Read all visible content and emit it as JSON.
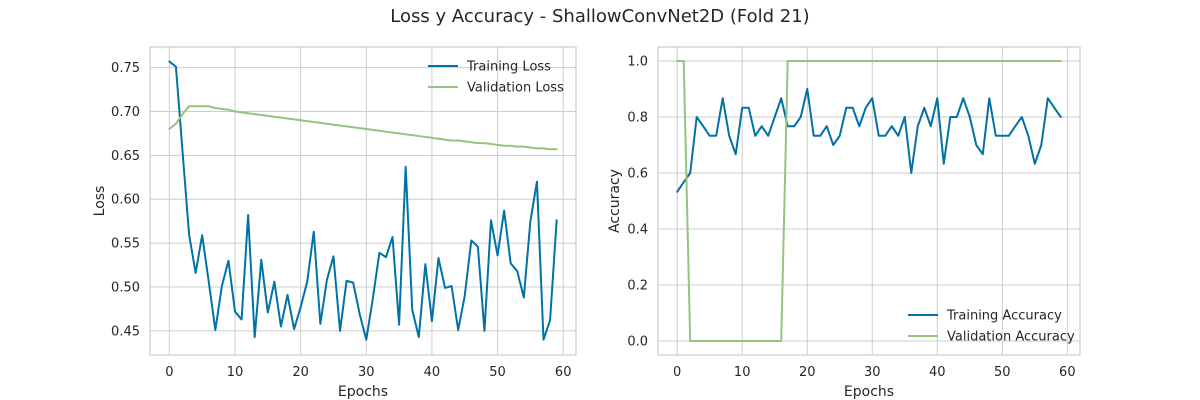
{
  "figure_title": "Loss y Accuracy - ShallowConvNet2D (Fold 21)",
  "colors": {
    "training": "#0072a6",
    "validation": "#96c37d",
    "grid": "#cccccc",
    "frame": "#cccccc"
  },
  "chart_data": [
    {
      "type": "line",
      "xlabel": "Epochs",
      "ylabel": "Loss",
      "xlim": [
        -2.95,
        61.95
      ],
      "ylim": [
        0.4225,
        0.7735
      ],
      "xticks": [
        0,
        10,
        20,
        30,
        40,
        50,
        60
      ],
      "yticks": [
        0.45,
        0.5,
        0.55,
        0.6,
        0.65,
        0.7,
        0.75
      ],
      "ytick_labels": [
        "0.45",
        "0.50",
        "0.55",
        "0.60",
        "0.65",
        "0.70",
        "0.75"
      ],
      "grid": true,
      "legend_position": "top-right",
      "x": [
        0,
        1,
        2,
        3,
        4,
        5,
        6,
        7,
        8,
        9,
        10,
        11,
        12,
        13,
        14,
        15,
        16,
        17,
        18,
        19,
        20,
        21,
        22,
        23,
        24,
        25,
        26,
        27,
        28,
        29,
        30,
        31,
        32,
        33,
        34,
        35,
        36,
        37,
        38,
        39,
        40,
        41,
        42,
        43,
        44,
        45,
        46,
        47,
        48,
        49,
        50,
        51,
        52,
        53,
        54,
        55,
        56,
        57,
        58,
        59
      ],
      "series": [
        {
          "name": "Training Loss",
          "color_key": "training",
          "values": [
            0.757,
            0.751,
            0.655,
            0.56,
            0.516,
            0.559,
            0.506,
            0.451,
            0.501,
            0.53,
            0.472,
            0.463,
            0.582,
            0.443,
            0.531,
            0.471,
            0.506,
            0.455,
            0.491,
            0.452,
            0.477,
            0.506,
            0.563,
            0.458,
            0.508,
            0.535,
            0.45,
            0.507,
            0.505,
            0.469,
            0.44,
            0.487,
            0.539,
            0.534,
            0.557,
            0.457,
            0.637,
            0.474,
            0.443,
            0.526,
            0.461,
            0.533,
            0.499,
            0.501,
            0.451,
            0.49,
            0.553,
            0.546,
            0.45,
            0.576,
            0.536,
            0.587,
            0.527,
            0.518,
            0.488,
            0.575,
            0.62,
            0.44,
            0.462,
            0.576
          ]
        },
        {
          "name": "Validation Loss",
          "color_key": "validation",
          "values": [
            0.68,
            0.686,
            0.697,
            0.706,
            0.706,
            0.706,
            0.706,
            0.704,
            0.703,
            0.702,
            0.7,
            0.699,
            0.698,
            0.697,
            0.696,
            0.695,
            0.694,
            0.693,
            0.692,
            0.691,
            0.69,
            0.689,
            0.688,
            0.687,
            0.686,
            0.685,
            0.684,
            0.683,
            0.682,
            0.681,
            0.68,
            0.679,
            0.678,
            0.677,
            0.676,
            0.675,
            0.674,
            0.673,
            0.672,
            0.671,
            0.67,
            0.669,
            0.668,
            0.667,
            0.667,
            0.666,
            0.665,
            0.664,
            0.664,
            0.663,
            0.662,
            0.661,
            0.661,
            0.66,
            0.66,
            0.659,
            0.658,
            0.658,
            0.657,
            0.657
          ]
        }
      ]
    },
    {
      "type": "line",
      "xlabel": "Epochs",
      "ylabel": "Accuracy",
      "xlim": [
        -2.95,
        61.95
      ],
      "ylim": [
        -0.05,
        1.05
      ],
      "xticks": [
        0,
        10,
        20,
        30,
        40,
        50,
        60
      ],
      "yticks": [
        0.0,
        0.2,
        0.4,
        0.6,
        0.8,
        1.0
      ],
      "ytick_labels": [
        "0.0",
        "0.2",
        "0.4",
        "0.6",
        "0.8",
        "1.0"
      ],
      "grid": true,
      "legend_position": "bottom-right",
      "x": [
        0,
        1,
        2,
        3,
        4,
        5,
        6,
        7,
        8,
        9,
        10,
        11,
        12,
        13,
        14,
        15,
        16,
        17,
        18,
        19,
        20,
        21,
        22,
        23,
        24,
        25,
        26,
        27,
        28,
        29,
        30,
        31,
        32,
        33,
        34,
        35,
        36,
        37,
        38,
        39,
        40,
        41,
        42,
        43,
        44,
        45,
        46,
        47,
        48,
        49,
        50,
        51,
        52,
        53,
        54,
        55,
        56,
        57,
        58,
        59
      ],
      "series": [
        {
          "name": "Training Accuracy",
          "color_key": "training",
          "values": [
            0.533,
            0.567,
            0.6,
            0.8,
            0.767,
            0.733,
            0.733,
            0.867,
            0.733,
            0.667,
            0.833,
            0.833,
            0.733,
            0.767,
            0.733,
            0.8,
            0.867,
            0.767,
            0.767,
            0.8,
            0.9,
            0.733,
            0.733,
            0.767,
            0.7,
            0.733,
            0.833,
            0.833,
            0.767,
            0.833,
            0.867,
            0.733,
            0.733,
            0.767,
            0.733,
            0.8,
            0.6,
            0.767,
            0.833,
            0.767,
            0.867,
            0.633,
            0.8,
            0.8,
            0.867,
            0.8,
            0.7,
            0.667,
            0.867,
            0.733,
            0.733,
            0.733,
            0.767,
            0.8,
            0.733,
            0.633,
            0.7,
            0.867,
            0.833,
            0.8
          ]
        },
        {
          "name": "Validation Accuracy",
          "color_key": "validation",
          "values": [
            1.0,
            1.0,
            0.0,
            0.0,
            0.0,
            0.0,
            0.0,
            0.0,
            0.0,
            0.0,
            0.0,
            0.0,
            0.0,
            0.0,
            0.0,
            0.0,
            0.0,
            1.0,
            1.0,
            1.0,
            1.0,
            1.0,
            1.0,
            1.0,
            1.0,
            1.0,
            1.0,
            1.0,
            1.0,
            1.0,
            1.0,
            1.0,
            1.0,
            1.0,
            1.0,
            1.0,
            1.0,
            1.0,
            1.0,
            1.0,
            1.0,
            1.0,
            1.0,
            1.0,
            1.0,
            1.0,
            1.0,
            1.0,
            1.0,
            1.0,
            1.0,
            1.0,
            1.0,
            1.0,
            1.0,
            1.0,
            1.0,
            1.0,
            1.0,
            1.0
          ]
        }
      ]
    }
  ]
}
